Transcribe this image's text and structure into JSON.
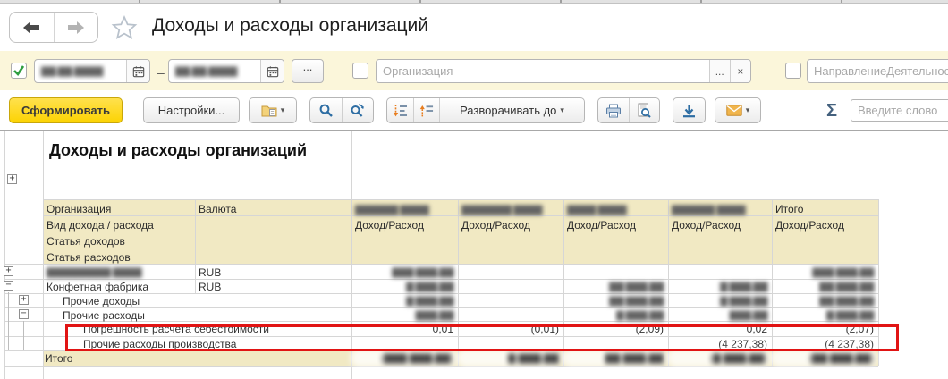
{
  "nav": {
    "title": "Доходы и расходы организаций"
  },
  "filters": {
    "date_from": "▇▇.▇▇.▇▇▇▇",
    "date_to": "▇▇.▇▇.▇▇▇▇",
    "range_dash": "–",
    "ellipsis": "...",
    "org_placeholder": "Организация",
    "org_ellipsis": "...",
    "org_clear": "×",
    "direction_placeholder": "НаправлениеДеятельнос"
  },
  "toolbar": {
    "generate": "Сформировать",
    "settings": "Настройки...",
    "expand_to": "Разворачивать до",
    "caret": "▾",
    "sigma": "Σ",
    "search_placeholder": "Введите слово"
  },
  "report": {
    "title": "Доходы и расходы организаций",
    "columns": {
      "org": "Организация",
      "currency": "Валюта",
      "months_blurred": [
        "▇▇▇▇▇▇ ▇▇▇▇",
        "▇▇▇▇▇▇▇ ▇▇▇▇",
        "▇▇▇▇ ▇▇▇▇",
        "▇▇▇▇▇▇ ▇▇▇▇"
      ],
      "total": "Итого",
      "kind": "Вид дохода / расхода",
      "income_expense": "Доход/Расход",
      "income_article": "Статья доходов",
      "expense_article": "Статья расходов"
    },
    "rows": [
      {
        "level": 0,
        "expander": "+",
        "label": "▇▇▇▇▇▇▇▇▇ ▇▇▇▇",
        "label_blurred": true,
        "currency": "RUB",
        "blurred": true,
        "values": [
          "▇▇▇ ▇▇▇,▇▇",
          "",
          "",
          "",
          "▇▇▇ ▇▇▇,▇▇"
        ]
      },
      {
        "level": 0,
        "expander": "−",
        "label": "Конфетная фабрика",
        "currency": "RUB",
        "blurred": true,
        "values": [
          "▇ ▇▇▇,▇▇",
          "",
          "▇▇ ▇▇▇,▇▇",
          "▇ ▇▇▇,▇▇",
          "▇▇ ▇▇▇,▇▇"
        ]
      },
      {
        "level": 1,
        "expander": "+",
        "label": "Прочие доходы",
        "blurred": true,
        "values": [
          "▇ ▇▇▇,▇▇",
          "",
          "▇▇ ▇▇▇,▇▇",
          "▇ ▇▇▇,▇▇",
          "▇▇ ▇▇▇,▇▇"
        ]
      },
      {
        "level": 1,
        "expander": "−",
        "label": "Прочие расходы",
        "blurred": true,
        "values": [
          "▇▇▇,▇▇",
          "",
          "▇ ▇▇▇,▇▇",
          "▇▇▇,▇▇",
          "▇ ▇▇▇,▇▇"
        ]
      },
      {
        "level": 2,
        "label": "Погрешность расчета себестоимости",
        "values": [
          "0,01",
          "(0,01)",
          "(2,09)",
          "0,02",
          "(2,07)"
        ]
      },
      {
        "level": 2,
        "label": "Прочие расходы производства",
        "highlighted": true,
        "values": [
          "",
          "",
          "",
          "(4 237,38)",
          "(4 237,38)"
        ]
      },
      {
        "total": true,
        "label": "Итого",
        "blurred": true,
        "values": [
          "(▇▇▇ ▇▇▇,▇▇)",
          "▇ ▇▇▇,▇▇",
          "▇▇ ▇▇▇,▇▇",
          "(▇ ▇▇▇,▇▇)",
          "(▇▇ ▇▇▇,▇▇)"
        ]
      }
    ],
    "highlight_color": "#e11414"
  }
}
